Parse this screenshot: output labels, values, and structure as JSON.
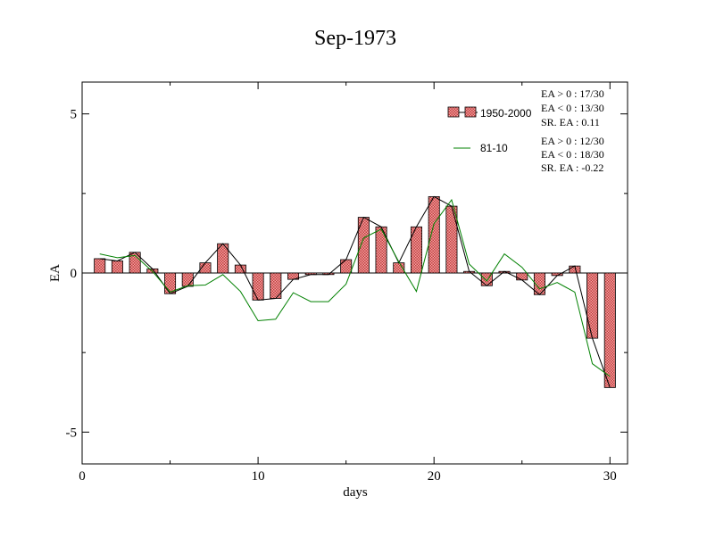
{
  "chart_data": {
    "type": "bar",
    "title": "Sep-1973",
    "xlabel": "days",
    "ylabel": "EA",
    "xlim": [
      0,
      31
    ],
    "ylim": [
      -6,
      6
    ],
    "xticks": [
      0,
      10,
      20,
      30
    ],
    "yticks": [
      -5,
      0,
      5
    ],
    "days": [
      1,
      2,
      3,
      4,
      5,
      6,
      7,
      8,
      9,
      10,
      11,
      12,
      13,
      14,
      15,
      16,
      17,
      18,
      19,
      20,
      21,
      22,
      23,
      24,
      25,
      26,
      27,
      28,
      29,
      30
    ],
    "series": [
      {
        "name": "1950-2000",
        "kind": "bar",
        "color": "#f08080",
        "values": [
          0.45,
          0.38,
          0.65,
          0.13,
          -0.65,
          -0.42,
          0.32,
          0.92,
          0.25,
          -0.85,
          -0.8,
          -0.2,
          -0.05,
          -0.05,
          0.42,
          1.75,
          1.45,
          0.32,
          1.45,
          2.4,
          2.1,
          0.05,
          -0.4,
          0.05,
          -0.22,
          -0.68,
          -0.08,
          0.22,
          -2.05,
          -3.6
        ]
      },
      {
        "name": "81-10",
        "kind": "line",
        "color": "#008000",
        "values": [
          0.6,
          0.48,
          0.55,
          0.05,
          -0.6,
          -0.4,
          -0.38,
          -0.05,
          -0.58,
          -1.5,
          -1.45,
          -0.62,
          -0.9,
          -0.9,
          -0.35,
          1.1,
          1.38,
          0.35,
          -0.58,
          1.55,
          2.3,
          0.28,
          -0.25,
          0.6,
          0.18,
          -0.5,
          -0.3,
          -0.6,
          -2.85,
          -3.25
        ]
      }
    ],
    "legend": {
      "placement": "top-right",
      "bars_label": "1950-2000",
      "line_label": "81-10",
      "bars_stats": [
        "EA > 0 : 17/30",
        "EA < 0 : 13/30",
        "SR. EA :  0.11"
      ],
      "line_stats": [
        "EA > 0 : 12/30",
        "EA < 0 : 18/30",
        "SR. EA : -0.22"
      ]
    },
    "grid": false
  }
}
